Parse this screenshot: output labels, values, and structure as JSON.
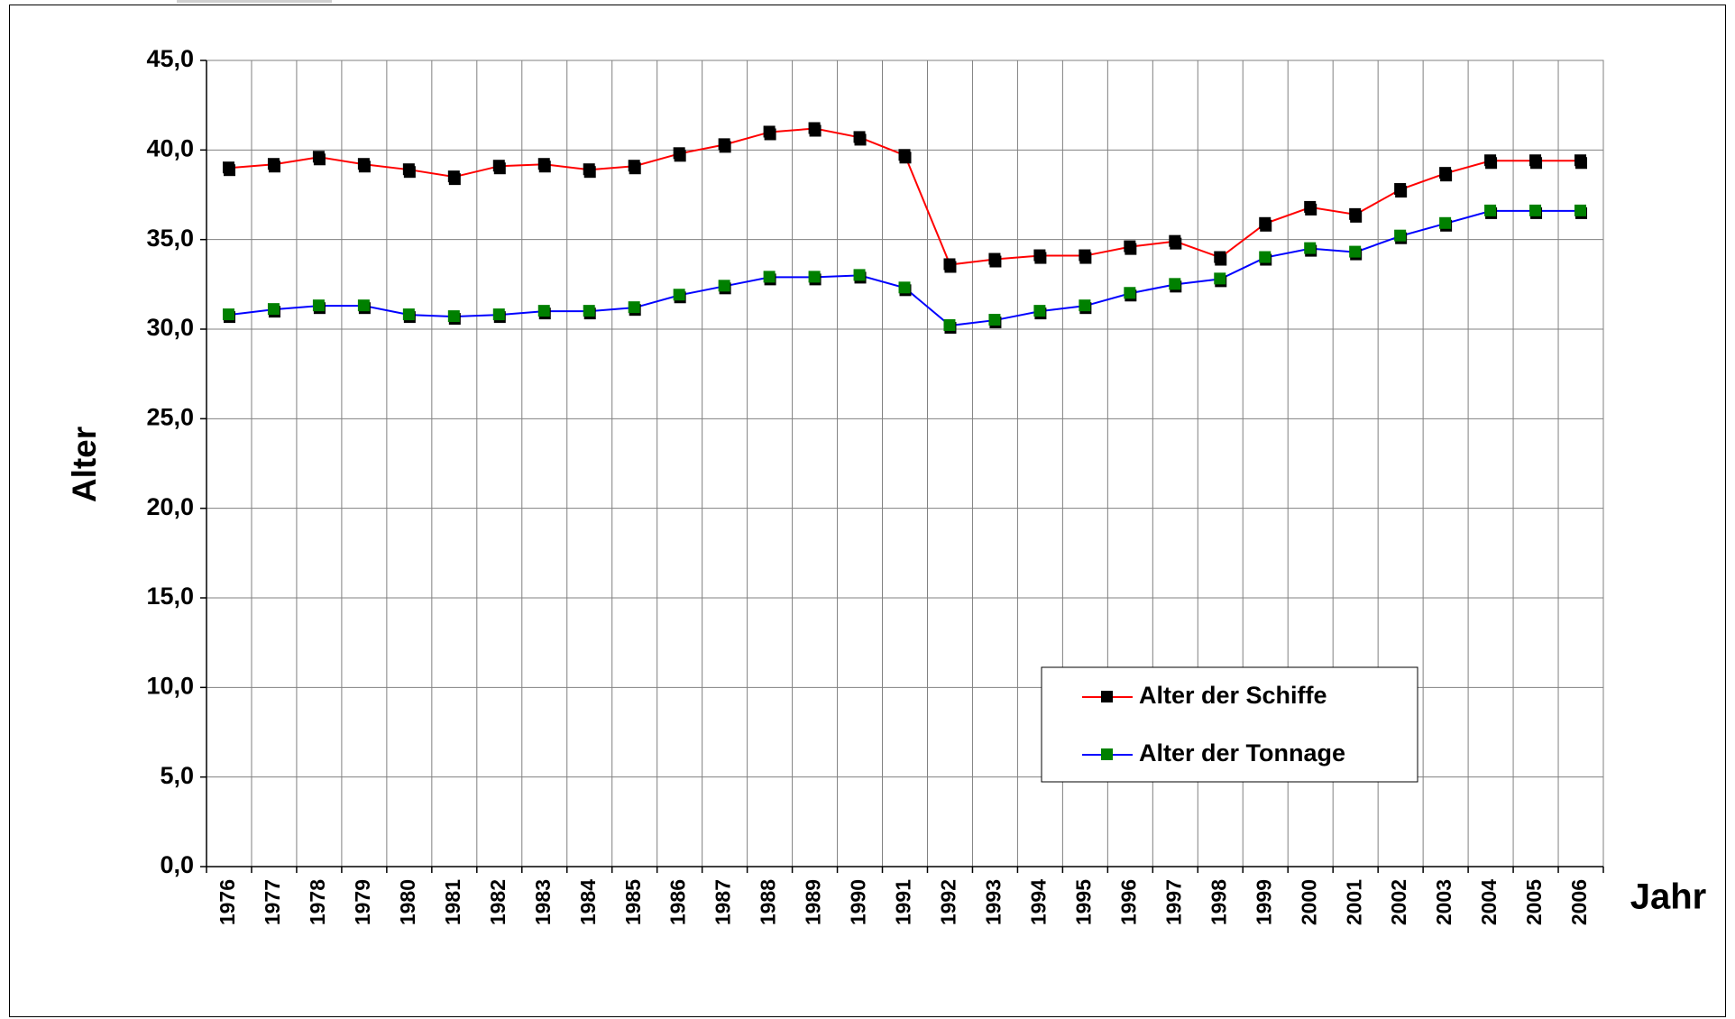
{
  "chart_data": {
    "type": "line",
    "x_label": "Jahr",
    "y_label": "Alter",
    "categories": [
      "1976",
      "1977",
      "1978",
      "1979",
      "1980",
      "1981",
      "1982",
      "1983",
      "1984",
      "1985",
      "1986",
      "1987",
      "1988",
      "1989",
      "1990",
      "1991",
      "1992",
      "1993",
      "1994",
      "1995",
      "1996",
      "1997",
      "1998",
      "1999",
      "2000",
      "2001",
      "2002",
      "2003",
      "2004",
      "2005",
      "2006"
    ],
    "series": [
      {
        "name": "Alter der Schiffe",
        "color": "#ff0000",
        "marker_color": "#000000",
        "values": [
          39.0,
          39.2,
          39.6,
          39.2,
          38.9,
          38.5,
          39.1,
          39.2,
          38.9,
          39.1,
          39.8,
          40.3,
          41.0,
          41.2,
          40.7,
          39.7,
          33.6,
          33.9,
          34.1,
          34.1,
          34.6,
          34.9,
          34.0,
          35.9,
          36.8,
          36.4,
          37.8,
          38.7,
          39.4,
          39.4,
          39.4
        ]
      },
      {
        "name": "Alter der Tonnage",
        "color": "#0000ff",
        "marker_color": "#008000",
        "values": [
          30.8,
          31.1,
          31.3,
          31.3,
          30.8,
          30.7,
          30.8,
          31.0,
          31.0,
          31.2,
          31.9,
          32.4,
          32.9,
          32.9,
          33.0,
          32.3,
          30.2,
          30.5,
          31.0,
          31.3,
          32.0,
          32.5,
          32.8,
          34.0,
          34.5,
          34.3,
          35.2,
          35.9,
          36.6,
          36.6,
          36.6
        ]
      }
    ],
    "ylim": [
      0,
      45
    ],
    "yticks": [
      {
        "value": 0,
        "label": "0,0"
      },
      {
        "value": 5,
        "label": "5,0"
      },
      {
        "value": 10,
        "label": "10,0"
      },
      {
        "value": 15,
        "label": "15,0"
      },
      {
        "value": 20,
        "label": "20,0"
      },
      {
        "value": 25,
        "label": "25,0"
      },
      {
        "value": 30,
        "label": "30,0"
      },
      {
        "value": 35,
        "label": "35,0"
      },
      {
        "value": 40,
        "label": "40,0"
      },
      {
        "value": 45,
        "label": "45,0"
      }
    ],
    "grid": true
  }
}
